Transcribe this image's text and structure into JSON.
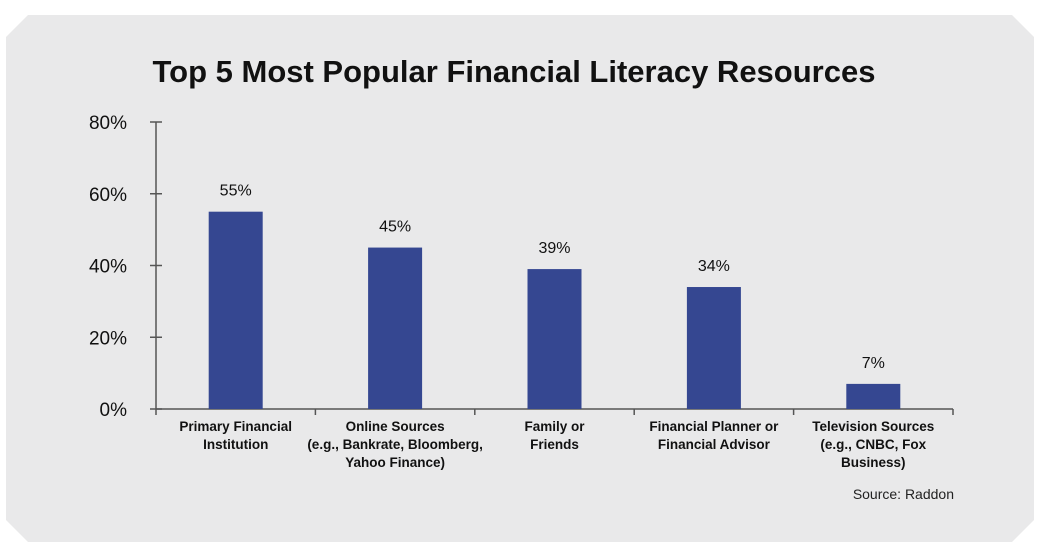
{
  "chart_data": {
    "type": "bar",
    "title": "Top 5 Most Popular Financial Literacy Resources",
    "categories": [
      [
        "Primary Financial",
        "Institution"
      ],
      [
        "Online Sources",
        "(e.g., Bankrate, Bloomberg,",
        "Yahoo Finance)"
      ],
      [
        "Family or",
        "Friends"
      ],
      [
        "Financial Planner or",
        "Financial Advisor"
      ],
      [
        "Television Sources",
        "(e.g., CNBC, Fox",
        "Business)"
      ]
    ],
    "values": [
      55,
      45,
      39,
      34,
      7
    ],
    "data_labels": [
      "55%",
      "45%",
      "39%",
      "34%",
      "7%"
    ],
    "ylim": [
      0,
      80
    ],
    "yticks": [
      0,
      20,
      40,
      60,
      80
    ],
    "ytick_labels": [
      "0%",
      "20%",
      "40%",
      "60%",
      "80%"
    ],
    "xlabel": "",
    "ylabel": "",
    "grid": false,
    "bar_color": "#354791",
    "source": "Source: Raddon"
  }
}
